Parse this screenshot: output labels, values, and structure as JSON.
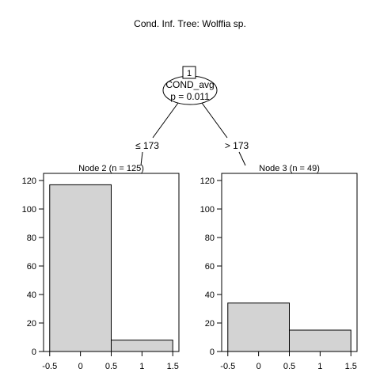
{
  "chart_data": {
    "type": "bar",
    "title": "Cond. Inf. Tree: Wolffia sp.",
    "tree": {
      "root": {
        "id_label": "1",
        "variable": "COND_avg",
        "p_label": "p = 0.011"
      },
      "split_left_label": "≤ 173",
      "split_right_label": "> 173"
    },
    "panels": [
      {
        "label": "Node 2 (n = 125)",
        "bins": [
          {
            "x0": -0.5,
            "x1": 0.5,
            "count": 117
          },
          {
            "x0": 0.5,
            "x1": 1.5,
            "count": 8
          }
        ]
      },
      {
        "label": "Node 3 (n = 49)",
        "bins": [
          {
            "x0": -0.5,
            "x1": 0.5,
            "count": 34
          },
          {
            "x0": 0.5,
            "x1": 1.5,
            "count": 15
          }
        ]
      }
    ],
    "xlim": [
      -0.6,
      1.6
    ],
    "ylim": [
      0,
      125
    ],
    "xticks": [
      {
        "value": -0.5,
        "label": "-0.5"
      },
      {
        "value": 0,
        "label": "0"
      },
      {
        "value": 0.5,
        "label": "0.5"
      },
      {
        "value": 1,
        "label": "1"
      },
      {
        "value": 1.5,
        "label": "1.5"
      }
    ],
    "yticks": [
      {
        "value": 0,
        "label": "0"
      },
      {
        "value": 20,
        "label": "20"
      },
      {
        "value": 40,
        "label": "40"
      },
      {
        "value": 60,
        "label": "60"
      },
      {
        "value": 80,
        "label": "80"
      },
      {
        "value": 100,
        "label": "100"
      },
      {
        "value": 120,
        "label": "120"
      }
    ],
    "bar_fill": "#d3d3d3",
    "grid": false
  }
}
